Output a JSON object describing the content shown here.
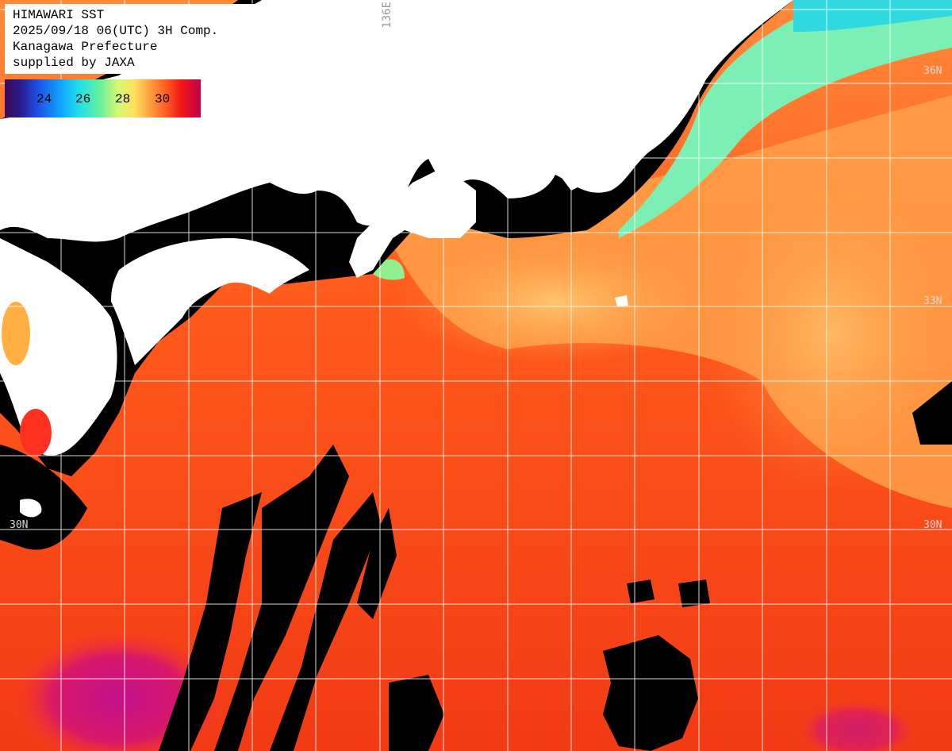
{
  "title": {
    "line1": "HIMAWARI SST",
    "line2": "2025/09/18 06(UTC) 3H Comp.",
    "line3": "Kanagawa Prefecture",
    "line4": "supplied by JAXA"
  },
  "colorbar": {
    "ticks": [
      "24",
      "26",
      "28",
      "30"
    ]
  },
  "grid_labels": {
    "lat_36": "36N",
    "lat_33": "33N",
    "lat_30_left": "30N",
    "lat_30_right": "30N",
    "lon_136": "136E"
  },
  "colors": {
    "land": "#ffffff",
    "cloud": "#000000",
    "grid": "#ffffff",
    "warm_sea": "#ff5a14",
    "hot_sea": "#c8108a",
    "cool_coast": "#7cf0b4"
  }
}
